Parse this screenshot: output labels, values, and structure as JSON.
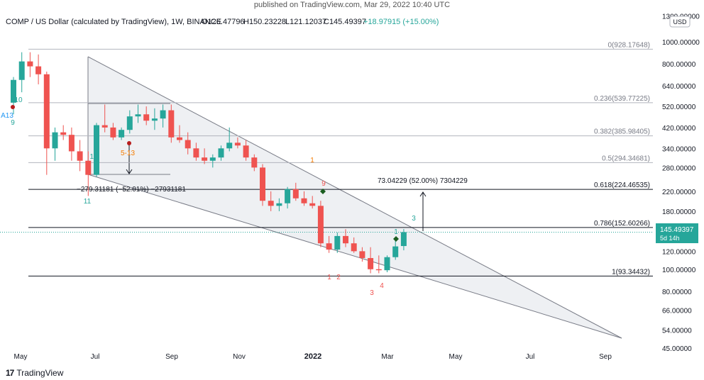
{
  "header": {
    "published": "published on TradingView.com, Mar 29, 2022 10:40 UTC"
  },
  "footer": {
    "brand": "TradingView",
    "logo_icon": "tradingview-logo-icon"
  },
  "colors": {
    "up": "#26a69a",
    "down": "#ef5350",
    "fib": "#b2b5be",
    "wedge_fill": "#eef0f3",
    "price_label_bg": "#26a69a"
  },
  "chart_data": {
    "type": "candlestick",
    "title": "COMP / US Dollar (calculated by TradingView), 1W, BINANCE",
    "ohlc_labels": [
      "O126.47796",
      "H150.23228",
      "L121.12037",
      "C145.49397",
      "+18.97915 (+15.00%)"
    ],
    "currency": "USD",
    "y_scale": "log",
    "ylim": [
      43,
      1300
    ],
    "x_ticks": [
      "May",
      "Jul",
      "Sep",
      "Nov",
      "2022",
      "Mar",
      "May",
      "Jul",
      "Sep"
    ],
    "y_ticks": [
      "1300.00000",
      "1000.00000",
      "800.00000",
      "640.00000",
      "520.00000",
      "420.00000",
      "340.00000",
      "280.00000",
      "220.00000",
      "180.00000",
      "120.00000",
      "100.00000",
      "80.00000",
      "66.00000",
      "54.00000",
      "45.00000"
    ],
    "fib_levels": [
      {
        "label": "0(928.17648)",
        "value": 928.17648
      },
      {
        "label": "0.236(539.77225)",
        "value": 539.77225
      },
      {
        "label": "0.382(385.98405)",
        "value": 385.98405
      },
      {
        "label": "0.5(294.34681)",
        "value": 294.34681
      },
      {
        "label": "0.618(224.46535)",
        "value": 224.46535
      },
      {
        "label": "0.786(152.60266)",
        "value": 152.60266
      },
      {
        "label": "1(93.34432)",
        "value": 93.34432
      }
    ],
    "current_price": {
      "value": 145.49397,
      "label": "145.49397",
      "countdown": "5d 14h"
    },
    "measure_down": {
      "label": "−279.31181 (−52.01%) −27931181"
    },
    "measure_up": {
      "label": "73.04229 (52.00%) 7304229"
    },
    "candles": [
      {
        "o": 540,
        "h": 700,
        "l": 480,
        "c": 680
      },
      {
        "o": 680,
        "h": 900,
        "l": 600,
        "c": 820
      },
      {
        "o": 820,
        "h": 900,
        "l": 700,
        "c": 780
      },
      {
        "o": 780,
        "h": 880,
        "l": 650,
        "c": 720
      },
      {
        "o": 720,
        "h": 740,
        "l": 260,
        "c": 340
      },
      {
        "o": 340,
        "h": 420,
        "l": 300,
        "c": 400
      },
      {
        "o": 400,
        "h": 430,
        "l": 370,
        "c": 390
      },
      {
        "o": 390,
        "h": 420,
        "l": 300,
        "c": 330
      },
      {
        "o": 330,
        "h": 370,
        "l": 270,
        "c": 300
      },
      {
        "o": 300,
        "h": 330,
        "l": 210,
        "c": 260
      },
      {
        "o": 260,
        "h": 440,
        "l": 255,
        "c": 430
      },
      {
        "o": 430,
        "h": 530,
        "l": 400,
        "c": 420
      },
      {
        "o": 420,
        "h": 440,
        "l": 370,
        "c": 380
      },
      {
        "o": 380,
        "h": 420,
        "l": 370,
        "c": 410
      },
      {
        "o": 410,
        "h": 500,
        "l": 395,
        "c": 470
      },
      {
        "o": 470,
        "h": 530,
        "l": 440,
        "c": 480
      },
      {
        "o": 480,
        "h": 520,
        "l": 430,
        "c": 450
      },
      {
        "o": 450,
        "h": 510,
        "l": 410,
        "c": 460
      },
      {
        "o": 460,
        "h": 530,
        "l": 420,
        "c": 500
      },
      {
        "o": 500,
        "h": 530,
        "l": 360,
        "c": 380
      },
      {
        "o": 380,
        "h": 430,
        "l": 360,
        "c": 370
      },
      {
        "o": 370,
        "h": 400,
        "l": 320,
        "c": 340
      },
      {
        "o": 340,
        "h": 360,
        "l": 300,
        "c": 310
      },
      {
        "o": 310,
        "h": 340,
        "l": 290,
        "c": 300
      },
      {
        "o": 300,
        "h": 320,
        "l": 280,
        "c": 310
      },
      {
        "o": 310,
        "h": 350,
        "l": 300,
        "c": 340
      },
      {
        "o": 340,
        "h": 420,
        "l": 330,
        "c": 360
      },
      {
        "o": 360,
        "h": 380,
        "l": 340,
        "c": 350
      },
      {
        "o": 350,
        "h": 370,
        "l": 300,
        "c": 310
      },
      {
        "o": 310,
        "h": 320,
        "l": 270,
        "c": 280
      },
      {
        "o": 280,
        "h": 290,
        "l": 190,
        "c": 200
      },
      {
        "o": 200,
        "h": 220,
        "l": 180,
        "c": 190
      },
      {
        "o": 190,
        "h": 205,
        "l": 180,
        "c": 195
      },
      {
        "o": 195,
        "h": 230,
        "l": 185,
        "c": 225
      },
      {
        "o": 225,
        "h": 240,
        "l": 200,
        "c": 205
      },
      {
        "o": 205,
        "h": 220,
        "l": 190,
        "c": 195
      },
      {
        "o": 195,
        "h": 210,
        "l": 185,
        "c": 190
      },
      {
        "o": 190,
        "h": 200,
        "l": 125,
        "c": 130
      },
      {
        "o": 130,
        "h": 140,
        "l": 118,
        "c": 122
      },
      {
        "o": 122,
        "h": 145,
        "l": 118,
        "c": 140
      },
      {
        "o": 140,
        "h": 150,
        "l": 125,
        "c": 130
      },
      {
        "o": 130,
        "h": 138,
        "l": 118,
        "c": 120
      },
      {
        "o": 120,
        "h": 125,
        "l": 108,
        "c": 112
      },
      {
        "o": 112,
        "h": 125,
        "l": 96,
        "c": 100
      },
      {
        "o": 100,
        "h": 115,
        "l": 96,
        "c": 99
      },
      {
        "o": 99,
        "h": 115,
        "l": 97,
        "c": 113
      },
      {
        "o": 113,
        "h": 135,
        "l": 110,
        "c": 126
      },
      {
        "o": 126.47796,
        "h": 150.23228,
        "l": 121.12037,
        "c": 145.49397
      }
    ],
    "annotations": [
      {
        "text": "10",
        "color": "#26a69a"
      },
      {
        "text": "A13",
        "color": "#2196f3"
      },
      {
        "text": "9",
        "color": "#26a69a"
      },
      {
        "text": "12",
        "color": "#26a69a"
      },
      {
        "text": "5-13",
        "color": "#f57c00"
      },
      {
        "text": "11",
        "color": "#26a69a"
      },
      {
        "text": "1",
        "color": "#f57c00"
      },
      {
        "text": "9",
        "color": "#ef5350"
      },
      {
        "text": "1",
        "color": "#ef5350"
      },
      {
        "text": "2",
        "color": "#ef5350"
      },
      {
        "text": "3",
        "color": "#ef5350"
      },
      {
        "text": "4",
        "color": "#ef5350"
      },
      {
        "text": "1",
        "color": "#26a69a"
      },
      {
        "text": "3",
        "color": "#26a69a"
      }
    ]
  }
}
